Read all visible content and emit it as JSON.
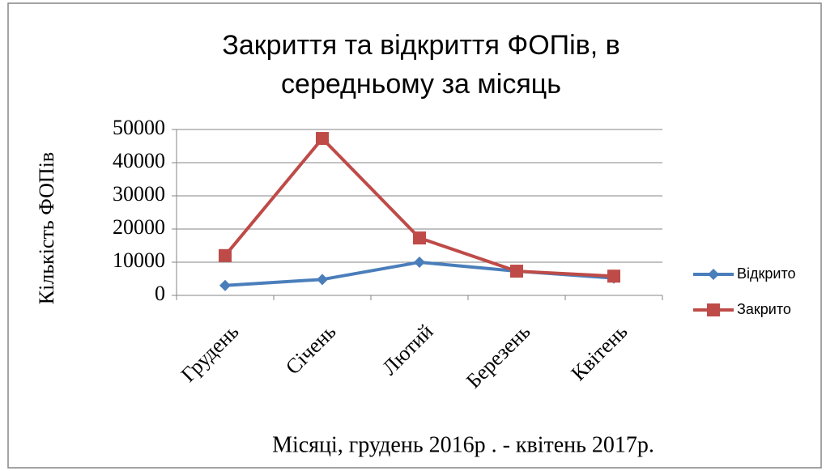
{
  "chart_data": {
    "type": "line",
    "title": "Закриття та відкриття ФОПів, в середньому за місяць",
    "title_lines": [
      "Закриття та відкриття ФОПів, в",
      "середньому за місяць"
    ],
    "x_label": "Місяці, грудень 2016р . - квітень 2017р.",
    "y_label": "Кількість ФОПів",
    "categories": [
      "Грудень",
      "Січень",
      "Лютий",
      "Березень",
      "Квітень"
    ],
    "series": [
      {
        "name": "Відкрито",
        "color": "#4a7ebb",
        "marker": "diamond",
        "values": [
          3000,
          4800,
          10000,
          7300,
          5200
        ]
      },
      {
        "name": "Закрито",
        "color": "#be4b48",
        "marker": "square",
        "values": [
          12000,
          47300,
          17300,
          7300,
          5800
        ]
      }
    ],
    "ylim": [
      0,
      50000
    ],
    "yticks": [
      0,
      10000,
      20000,
      30000,
      40000,
      50000
    ],
    "grid": true,
    "legend": "right"
  }
}
